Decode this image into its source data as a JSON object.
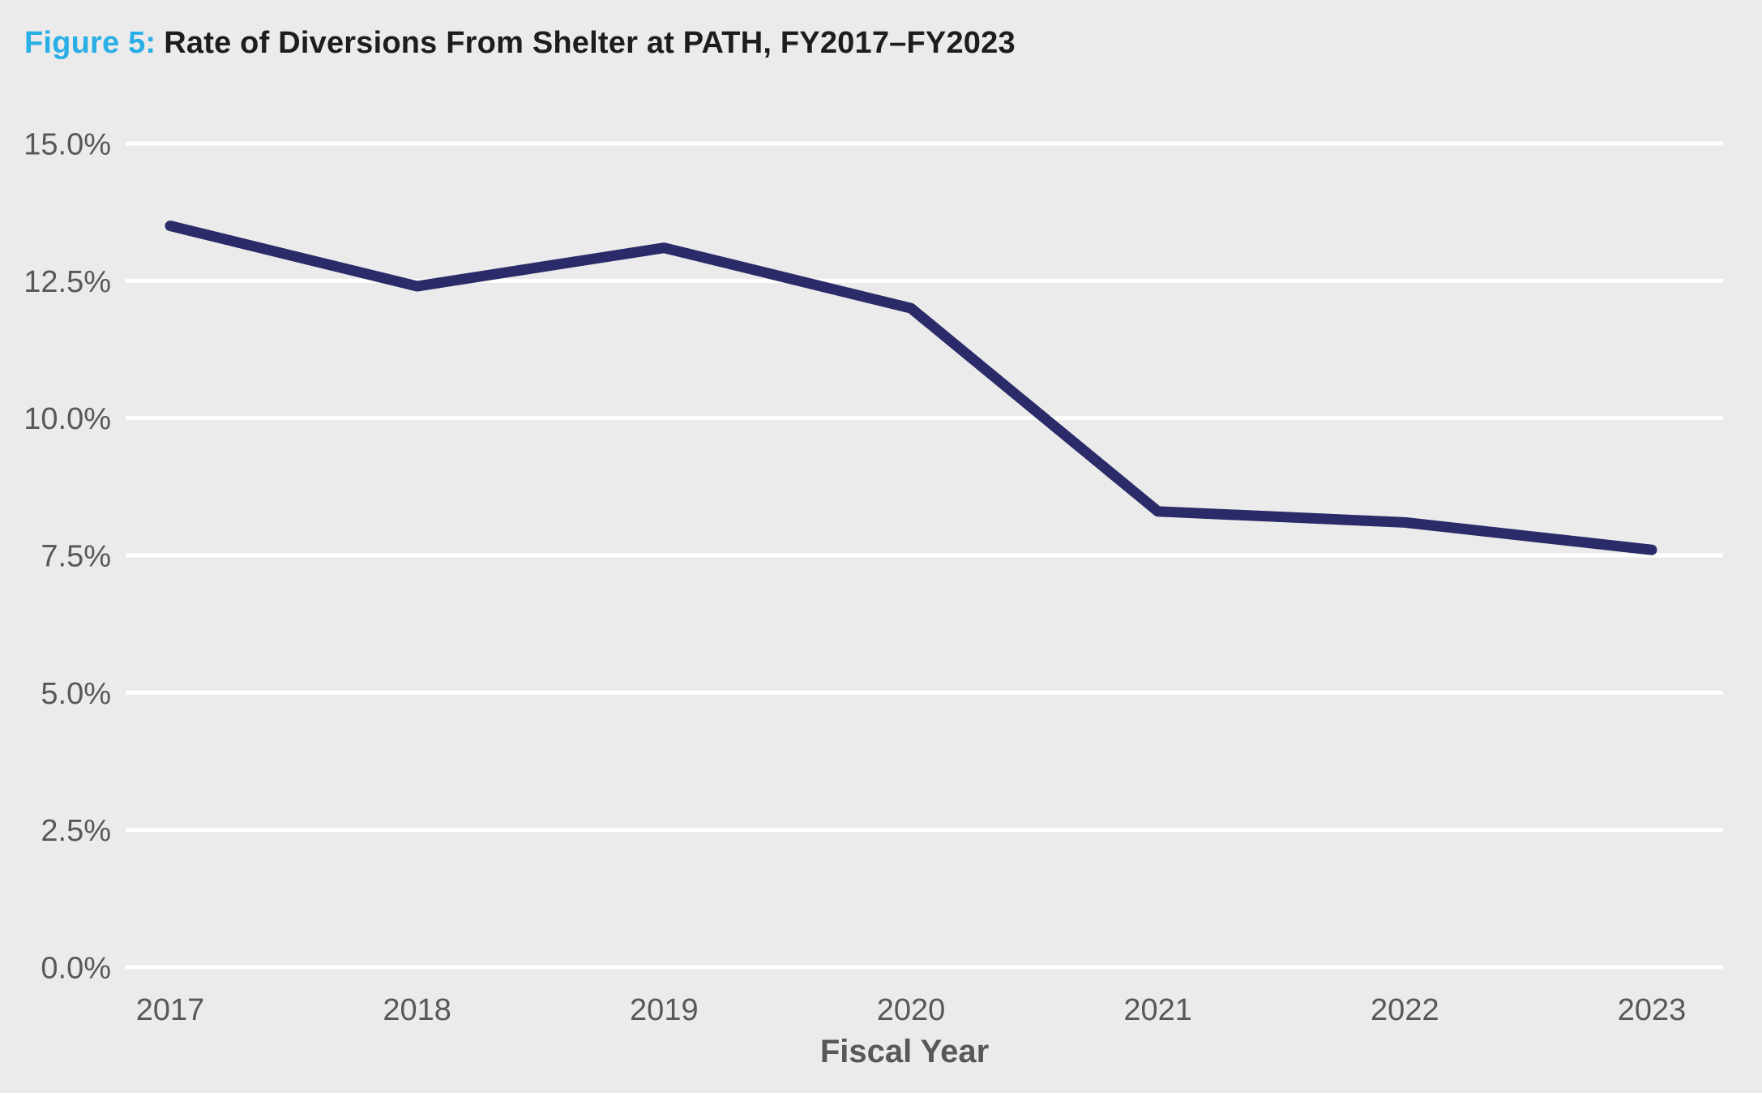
{
  "title": {
    "prefix": "Figure 5:",
    "text": "Rate of Diversions From Shelter at PATH, FY2017–FY2023"
  },
  "chart_data": {
    "type": "line",
    "title": "Figure 5: Rate of Diversions From Shelter at PATH, FY2017–FY2023",
    "categories": [
      "2017",
      "2018",
      "2019",
      "2020",
      "2021",
      "2022",
      "2023"
    ],
    "values": [
      13.5,
      12.4,
      13.1,
      12.0,
      8.3,
      8.1,
      7.6
    ],
    "xlabel": "Fiscal Year",
    "ylabel": "",
    "ylim": [
      0,
      15
    ],
    "ytick_step": 2.5,
    "ytick_labels": [
      "0.0%",
      "2.5%",
      "5.0%",
      "7.5%",
      "10.0%",
      "12.5%",
      "15.0%"
    ],
    "grid": true,
    "legend": false
  },
  "colors": {
    "background": "#ebebeb",
    "gridline": "#ffffff",
    "line": "#2a2b68",
    "title_prefix": "#29aee5",
    "title_text": "#1d1d1b",
    "axis_label": "#58585a",
    "bottom_strip": "#ffffff"
  }
}
